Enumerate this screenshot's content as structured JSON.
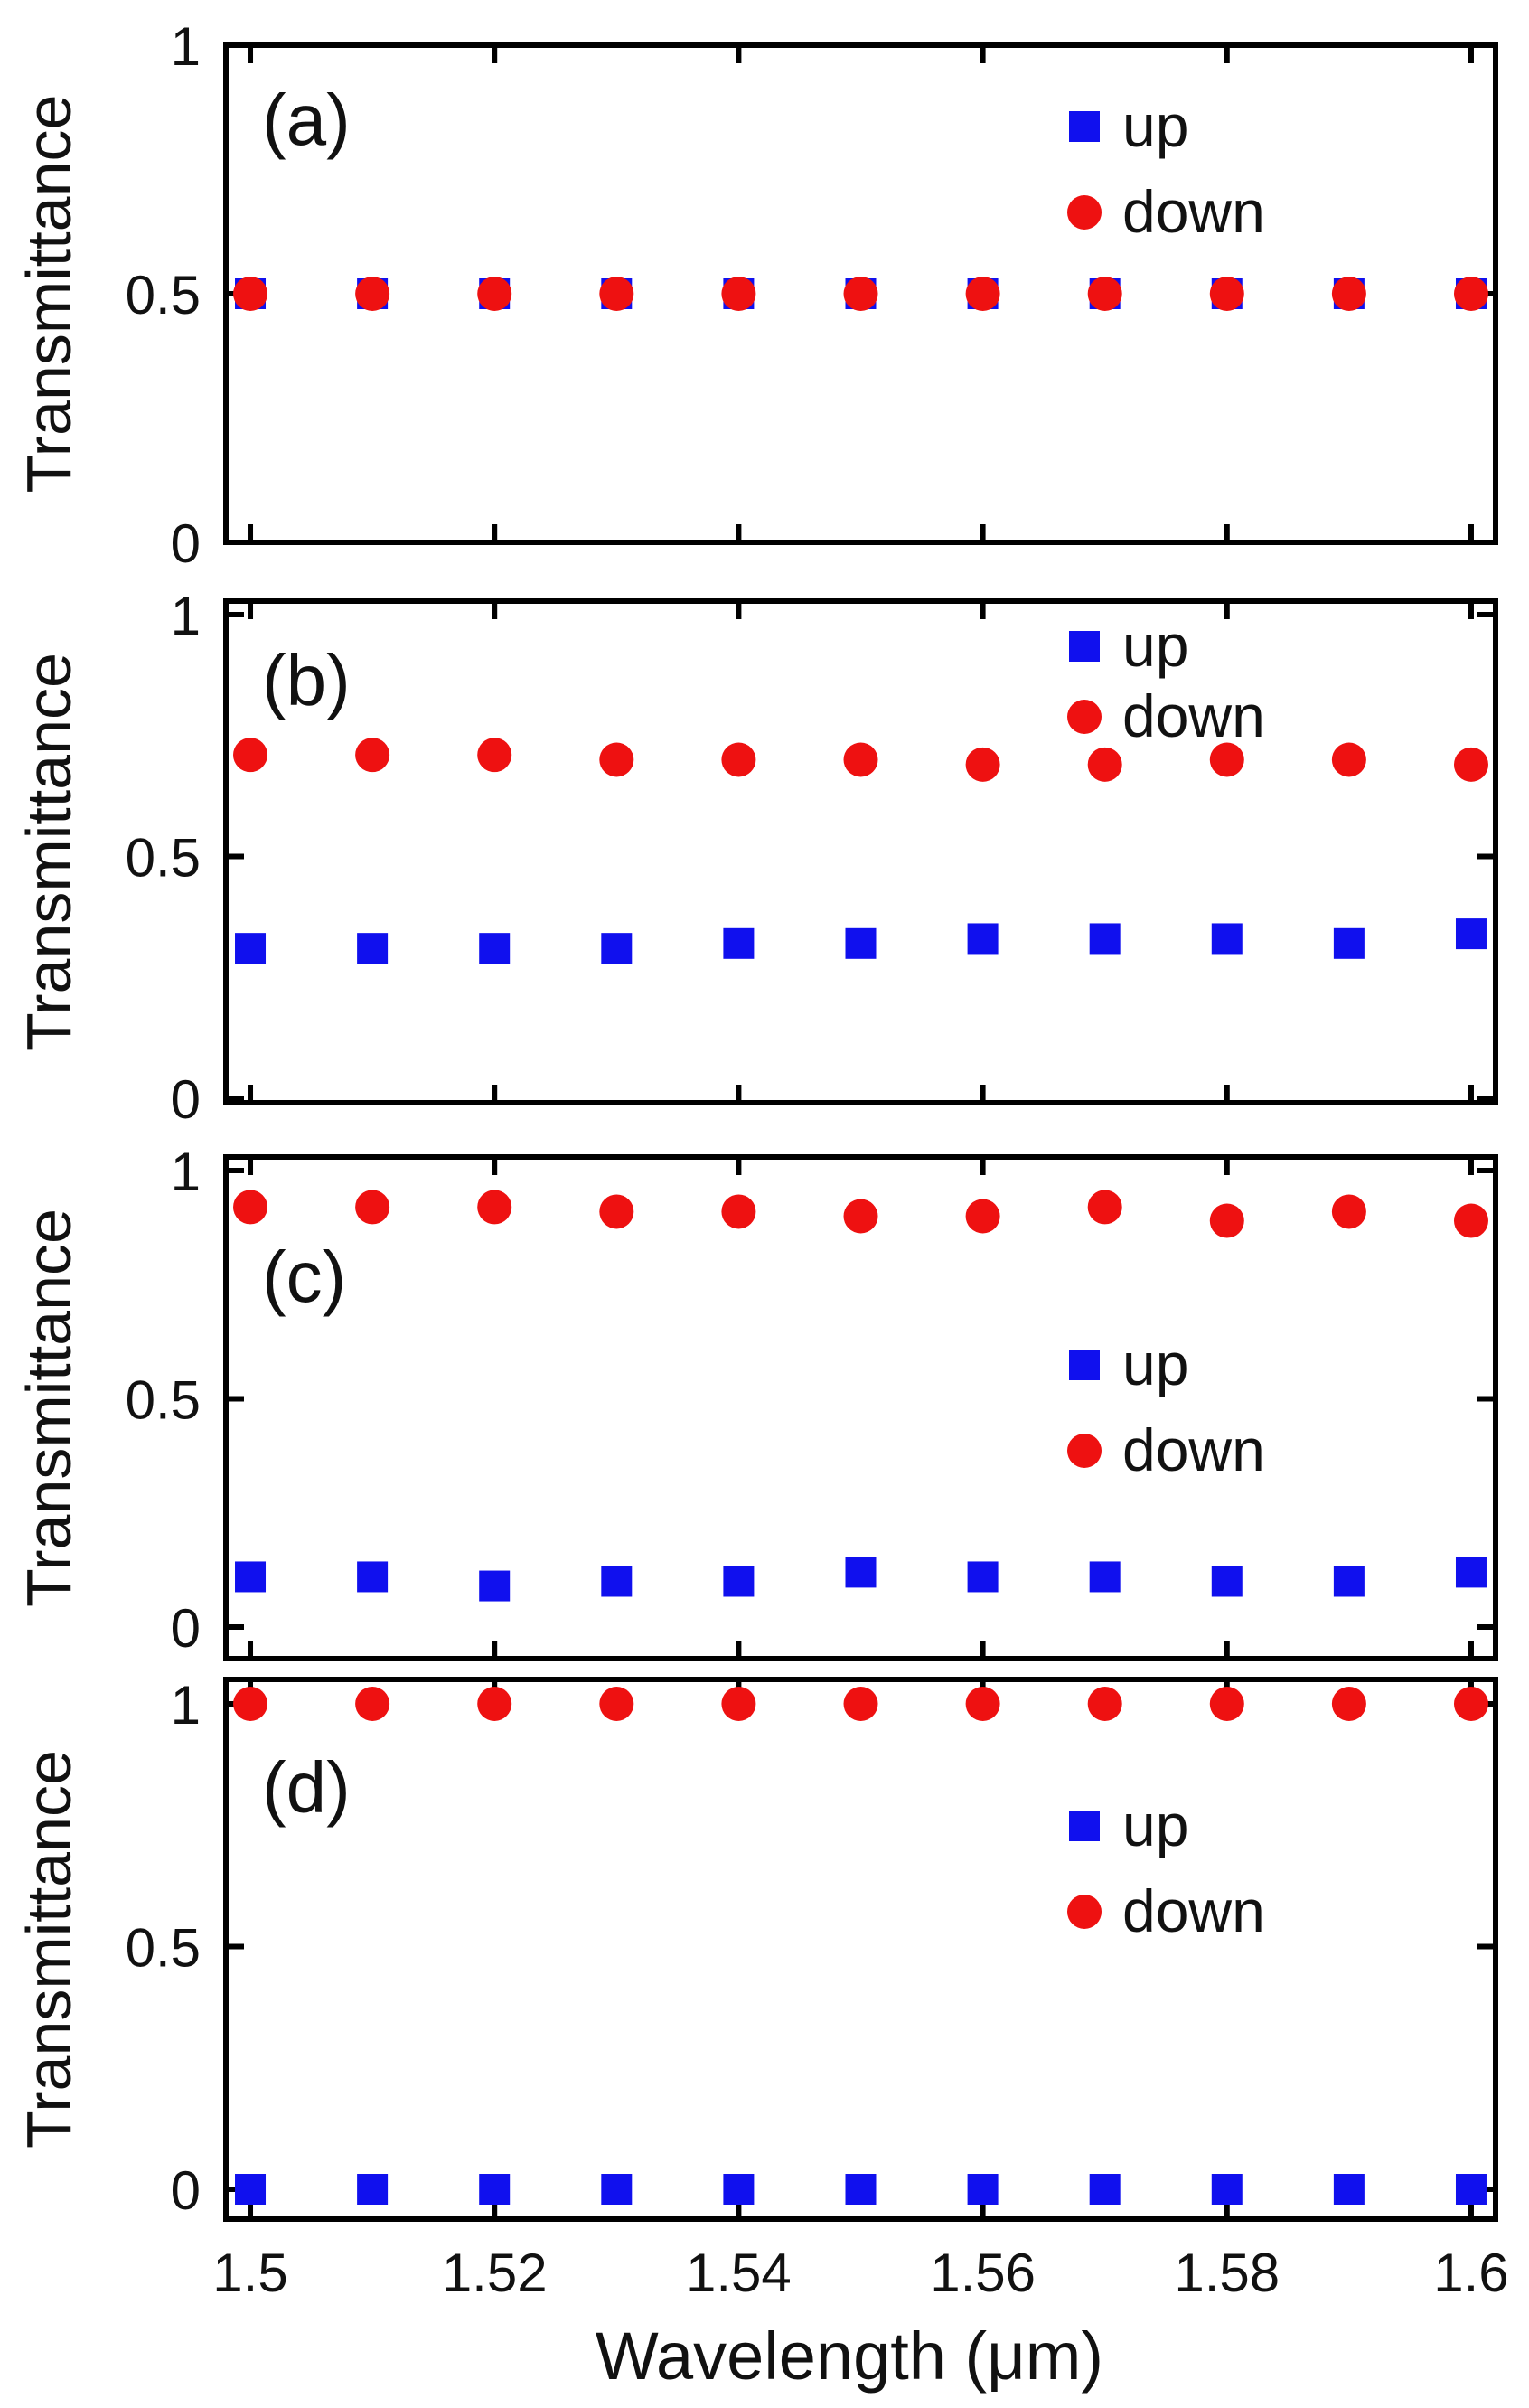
{
  "colors": {
    "up": "#1010ee",
    "down": "#ee1111",
    "axis": "#000000"
  },
  "chart_data": [
    {
      "type": "scatter",
      "panel_label": "(a)",
      "ylabel": "Transmittance",
      "ylim": [
        0,
        1
      ],
      "yticks": [
        0,
        0.5,
        1
      ],
      "ytick_labels": [
        "0",
        "0.5",
        "1"
      ],
      "xlim": [
        1.498,
        1.602
      ],
      "legend": {
        "position": "top-right",
        "entries": [
          "up",
          "down"
        ]
      },
      "x": [
        1.5,
        1.51,
        1.52,
        1.53,
        1.54,
        1.55,
        1.56,
        1.57,
        1.58,
        1.59,
        1.6
      ],
      "series": [
        {
          "name": "up",
          "marker": "square",
          "values": [
            0.5,
            0.5,
            0.5,
            0.5,
            0.5,
            0.5,
            0.5,
            0.5,
            0.5,
            0.5,
            0.5
          ]
        },
        {
          "name": "down",
          "marker": "circle",
          "values": [
            0.5,
            0.5,
            0.5,
            0.5,
            0.5,
            0.5,
            0.5,
            0.5,
            0.5,
            0.5,
            0.5
          ]
        }
      ]
    },
    {
      "type": "scatter",
      "panel_label": "(b)",
      "ylabel": "Transmittance",
      "ylim": [
        0,
        1
      ],
      "yticks": [
        0,
        0.5,
        1
      ],
      "ytick_labels": [
        "0",
        "0.5",
        "1"
      ],
      "xlim": [
        1.498,
        1.602
      ],
      "legend": {
        "position": "top-right",
        "entries": [
          "up",
          "down"
        ]
      },
      "x": [
        1.5,
        1.51,
        1.52,
        1.53,
        1.54,
        1.55,
        1.56,
        1.57,
        1.58,
        1.59,
        1.6
      ],
      "series": [
        {
          "name": "up",
          "marker": "square",
          "values": [
            0.31,
            0.31,
            0.31,
            0.31,
            0.32,
            0.32,
            0.33,
            0.33,
            0.33,
            0.32,
            0.34
          ]
        },
        {
          "name": "down",
          "marker": "circle",
          "values": [
            0.71,
            0.71,
            0.71,
            0.7,
            0.7,
            0.7,
            0.69,
            0.69,
            0.7,
            0.7,
            0.69
          ]
        }
      ]
    },
    {
      "type": "scatter",
      "panel_label": "(c)",
      "ylabel": "Transmittance",
      "ylim": [
        0,
        1
      ],
      "yticks": [
        0,
        0.5,
        1
      ],
      "ytick_labels": [
        "0",
        "0.5",
        "1"
      ],
      "xlim": [
        1.498,
        1.602
      ],
      "legend": {
        "position": "center-right",
        "entries": [
          "up",
          "down"
        ]
      },
      "x": [
        1.5,
        1.51,
        1.52,
        1.53,
        1.54,
        1.55,
        1.56,
        1.57,
        1.58,
        1.59,
        1.6
      ],
      "series": [
        {
          "name": "up",
          "marker": "square",
          "values": [
            0.11,
            0.11,
            0.09,
            0.1,
            0.1,
            0.12,
            0.11,
            0.11,
            0.1,
            0.1,
            0.12
          ]
        },
        {
          "name": "down",
          "marker": "circle",
          "values": [
            0.92,
            0.92,
            0.92,
            0.91,
            0.91,
            0.9,
            0.9,
            0.92,
            0.89,
            0.91,
            0.89
          ]
        }
      ]
    },
    {
      "type": "scatter",
      "panel_label": "(d)",
      "ylabel": "Transmittance",
      "ylim": [
        0,
        1
      ],
      "yticks": [
        0,
        0.5,
        1
      ],
      "ytick_labels": [
        "0",
        "0.5",
        "1"
      ],
      "xlim": [
        1.498,
        1.602
      ],
      "xticks": [
        1.5,
        1.52,
        1.54,
        1.56,
        1.58,
        1.6
      ],
      "xtick_labels": [
        "1.5",
        "1.52",
        "1.54",
        "1.56",
        "1.58",
        "1.6"
      ],
      "xlabel": "Wavelength (μm)",
      "legend": {
        "position": "top-right",
        "entries": [
          "up",
          "down"
        ]
      },
      "x": [
        1.5,
        1.51,
        1.52,
        1.53,
        1.54,
        1.55,
        1.56,
        1.57,
        1.58,
        1.59,
        1.6
      ],
      "series": [
        {
          "name": "up",
          "marker": "square",
          "values": [
            0,
            0,
            0,
            0,
            0,
            0,
            0,
            0,
            0,
            0,
            0
          ]
        },
        {
          "name": "down",
          "marker": "circle",
          "values": [
            1,
            1,
            1,
            1,
            1,
            1,
            1,
            1,
            1,
            1,
            1
          ]
        }
      ]
    }
  ]
}
